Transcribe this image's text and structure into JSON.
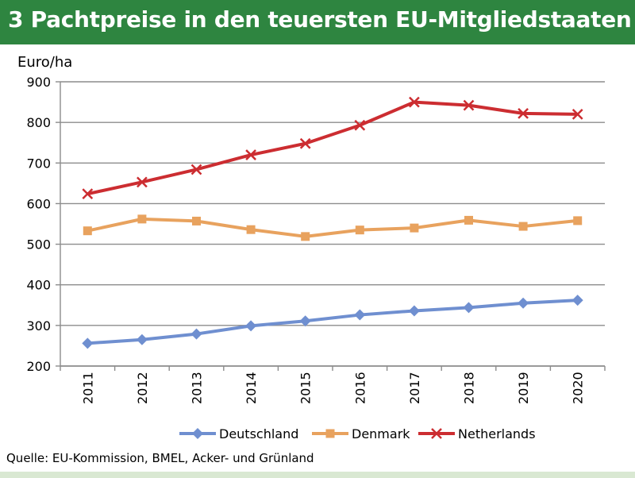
{
  "header": {
    "title": "3 Pachtpreise in den teuersten EU-Mitgliedstaaten"
  },
  "colors": {
    "header_bg": "#2e8540",
    "deutschland": "#6f8fd0",
    "denmark": "#e8a25e",
    "netherlands": "#cc2d31"
  },
  "source": "Quelle: EU-Kommission, BMEL, Acker- und Grünland",
  "chart_data": {
    "type": "line",
    "ylabel": "Euro/ha",
    "xlabel": "",
    "ylim": [
      200,
      900
    ],
    "yticks": [
      "200",
      "300",
      "400",
      "500",
      "600",
      "700",
      "800",
      "900"
    ],
    "grid": true,
    "legend_position": "bottom",
    "categories": [
      "2011",
      "2012",
      "2013",
      "2014",
      "2015",
      "2016",
      "2017",
      "2018",
      "2019",
      "2020"
    ],
    "series": [
      {
        "name": "Deutschland",
        "marker": "diamond",
        "color": "#6f8fd0",
        "values": [
          256,
          265,
          279,
          299,
          311,
          326,
          336,
          344,
          355,
          362
        ]
      },
      {
        "name": "Denmark",
        "marker": "square",
        "color": "#e8a25e",
        "values": [
          533,
          562,
          557,
          536,
          519,
          535,
          540,
          559,
          544,
          558
        ]
      },
      {
        "name": "Netherlands",
        "marker": "x",
        "color": "#cc2d31",
        "values": [
          624,
          653,
          684,
          720,
          748,
          793,
          850,
          842,
          822,
          820
        ]
      }
    ]
  }
}
